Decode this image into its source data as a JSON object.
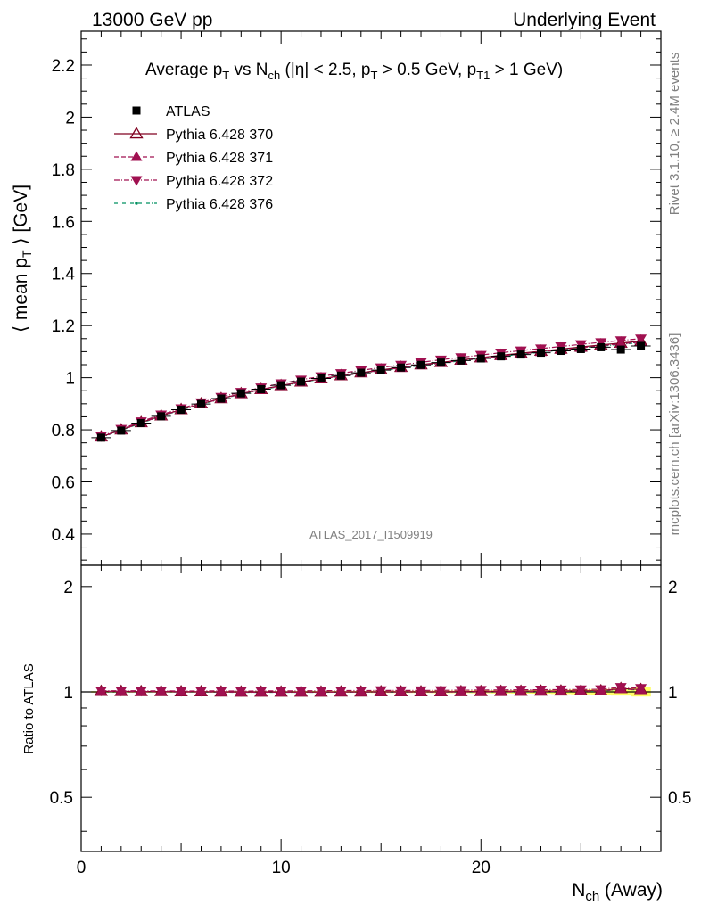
{
  "header": {
    "left": "13000 GeV pp",
    "right": "Underlying Event"
  },
  "side_labels": {
    "rivet": "Rivet 3.1.10, ≥ 2.4M events",
    "mcplots": "mcplots.cern.ch [arXiv:1306.3436]"
  },
  "watermark": "ATLAS_2017_I1509919",
  "chart_data": [
    {
      "type": "scatter",
      "title_parts": [
        "Average p",
        "T",
        " vs N",
        "ch",
        " (|η| < 2.5, p",
        "T",
        " > 0.5 GeV, p",
        "T1",
        " > 1 GeV)"
      ],
      "ylabel_parts": [
        "⟨ mean p",
        "T",
        " ⟩ [GeV]"
      ],
      "ylim": [
        0.28,
        2.33
      ],
      "yticks": [
        "0.4",
        "0.6",
        "0.8",
        "1",
        "1.2",
        "1.4",
        "1.6",
        "1.8",
        "2",
        "2.2"
      ],
      "xlim": [
        0,
        29
      ],
      "x": [
        1,
        2,
        3,
        4,
        5,
        6,
        7,
        8,
        9,
        10,
        11,
        12,
        13,
        14,
        15,
        16,
        17,
        18,
        19,
        20,
        21,
        22,
        23,
        24,
        25,
        26,
        27,
        28
      ],
      "series": [
        {
          "name": "ATLAS",
          "color": "#000000",
          "marker": "square",
          "values": [
            0.77,
            0.797,
            0.826,
            0.852,
            0.877,
            0.899,
            0.92,
            0.94,
            0.956,
            0.971,
            0.985,
            0.997,
            1.008,
            1.019,
            1.029,
            1.039,
            1.049,
            1.058,
            1.066,
            1.074,
            1.082,
            1.089,
            1.096,
            1.103,
            1.11,
            1.117,
            1.108,
            1.122
          ]
        },
        {
          "name": "Pythia 6.428 370",
          "color": "#800020",
          "marker": "triangle-open",
          "dash": "",
          "values": [
            0.773,
            0.8,
            0.828,
            0.854,
            0.878,
            0.9,
            0.92,
            0.939,
            0.955,
            0.97,
            0.984,
            0.996,
            1.008,
            1.019,
            1.03,
            1.04,
            1.05,
            1.059,
            1.068,
            1.077,
            1.086,
            1.094,
            1.102,
            1.11,
            1.118,
            1.126,
            1.133,
            1.14
          ]
        },
        {
          "name": "Pythia 6.428 371",
          "color": "#a01050",
          "marker": "triangle-up",
          "dash": "5,3",
          "values": [
            0.772,
            0.799,
            0.827,
            0.853,
            0.877,
            0.899,
            0.919,
            0.938,
            0.954,
            0.969,
            0.983,
            0.995,
            1.007,
            1.018,
            1.028,
            1.038,
            1.048,
            1.057,
            1.066,
            1.075,
            1.083,
            1.091,
            1.099,
            1.107,
            1.115,
            1.123,
            1.13,
            1.137
          ]
        },
        {
          "name": "Pythia 6.428 372",
          "color": "#a01050",
          "marker": "triangle-down",
          "dash": "6,2,1,2",
          "values": [
            0.776,
            0.803,
            0.832,
            0.858,
            0.882,
            0.905,
            0.926,
            0.945,
            0.962,
            0.978,
            0.992,
            1.005,
            1.017,
            1.028,
            1.039,
            1.049,
            1.059,
            1.069,
            1.078,
            1.087,
            1.096,
            1.104,
            1.112,
            1.12,
            1.128,
            1.136,
            1.143,
            1.15
          ]
        },
        {
          "name": "Pythia 6.428 376",
          "color": "#009060",
          "marker": "dot",
          "dash": "4,2,1,2",
          "values": [
            0.771,
            0.798,
            0.826,
            0.852,
            0.876,
            0.898,
            0.918,
            0.937,
            0.953,
            0.968,
            0.982,
            0.994,
            1.006,
            1.017,
            1.027,
            1.037,
            1.047,
            1.056,
            1.065,
            1.074,
            1.082,
            1.09,
            1.098,
            1.106,
            1.114,
            1.121,
            1.128,
            1.135
          ]
        }
      ]
    },
    {
      "type": "scatter",
      "ylabel": "Ratio to ATLAS",
      "ylim": [
        0.35,
        2.3
      ],
      "yticks": [
        "0.5",
        "1",
        "2"
      ],
      "xlim": [
        0,
        29
      ],
      "xticks": [
        "0",
        "10",
        "20"
      ],
      "xlabel_parts": [
        "N",
        "ch",
        " (Away)"
      ],
      "band_color": "#ffff66",
      "x": [
        1,
        2,
        3,
        4,
        5,
        6,
        7,
        8,
        9,
        10,
        11,
        12,
        13,
        14,
        15,
        16,
        17,
        18,
        19,
        20,
        21,
        22,
        23,
        24,
        25,
        26,
        27,
        28
      ],
      "band_halfwidth": [
        0.005,
        0.005,
        0.005,
        0.005,
        0.005,
        0.005,
        0.005,
        0.005,
        0.005,
        0.005,
        0.006,
        0.006,
        0.006,
        0.006,
        0.007,
        0.007,
        0.007,
        0.008,
        0.008,
        0.009,
        0.01,
        0.011,
        0.012,
        0.014,
        0.016,
        0.019,
        0.024,
        0.03
      ]
    }
  ]
}
